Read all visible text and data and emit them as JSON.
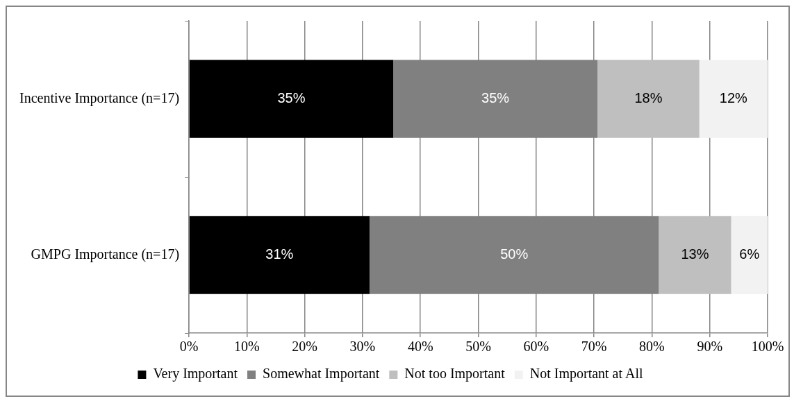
{
  "chart_data": {
    "type": "bar",
    "orientation": "horizontal",
    "stacked": true,
    "categories": [
      "Incentive Importance (n=17)",
      "GMPG Importance (n=17)"
    ],
    "series": [
      {
        "name": "Very Important",
        "color": "#000000",
        "values": [
          35.3,
          31.2
        ],
        "value_labels": [
          "35%",
          "31%"
        ]
      },
      {
        "name": "Somewhat Important",
        "color": "#808080",
        "values": [
          35.3,
          50
        ],
        "value_labels": [
          "35%",
          "50%"
        ]
      },
      {
        "name": "Not too Important",
        "color": "#bfbfbf",
        "values": [
          17.6,
          12.5
        ],
        "value_labels": [
          "18%",
          "13%"
        ]
      },
      {
        "name": "Not Important at All",
        "color": "#f2f2f2",
        "values": [
          11.8,
          6.3
        ],
        "value_labels": [
          "12%",
          "6%"
        ]
      }
    ],
    "xlim": [
      0,
      100
    ],
    "xticks": [
      {
        "value": 0,
        "label": "0%"
      },
      {
        "value": 10,
        "label": "10%"
      },
      {
        "value": 20,
        "label": "20%"
      },
      {
        "value": 30,
        "label": "30%"
      },
      {
        "value": 40,
        "label": "40%"
      },
      {
        "value": 50,
        "label": "50%"
      },
      {
        "value": 60,
        "label": "60%"
      },
      {
        "value": 70,
        "label": "70%"
      },
      {
        "value": 80,
        "label": "80%"
      },
      {
        "value": 90,
        "label": "90%"
      },
      {
        "value": 100,
        "label": "100%"
      }
    ],
    "grid": "x",
    "legend": "bottom"
  }
}
